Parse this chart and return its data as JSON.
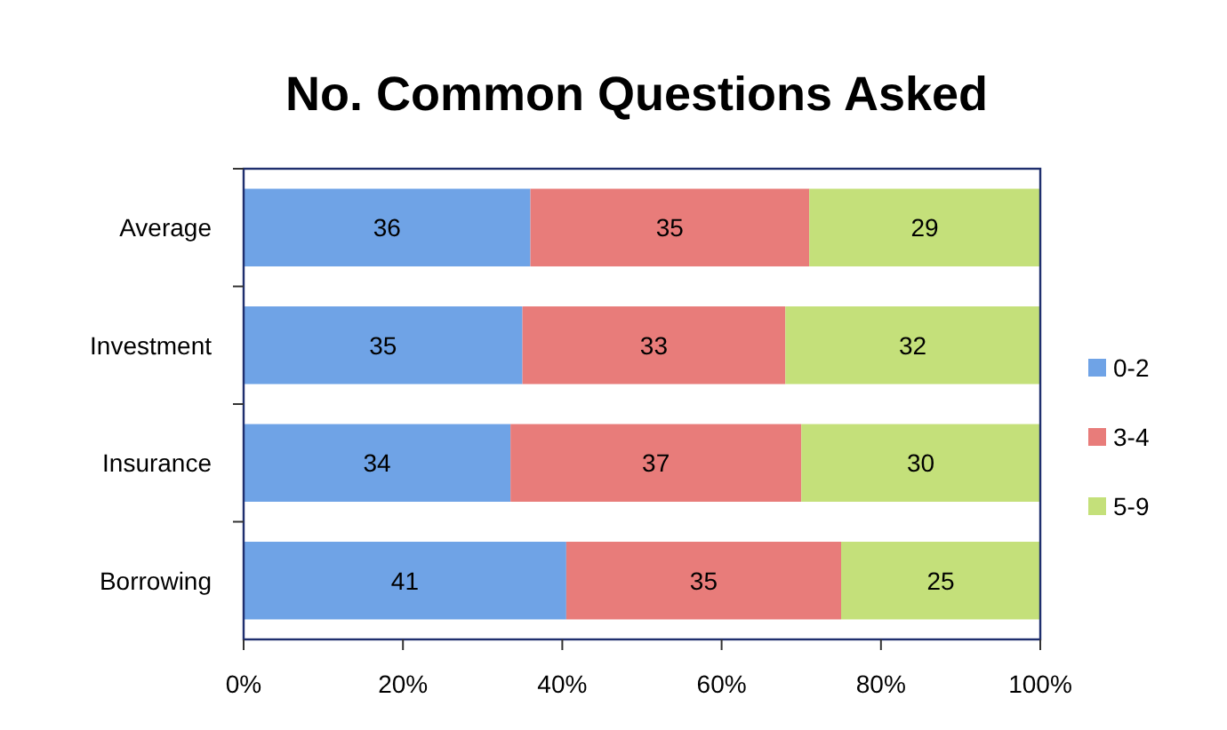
{
  "chart_data": {
    "type": "bar",
    "title": "No. Common Questions Asked",
    "orientation": "horizontal",
    "stacked": true,
    "categories": [
      "Average",
      "Investment",
      "Insurance",
      "Borrowing"
    ],
    "series": [
      {
        "name": "0-2",
        "color": "#6fa3e6",
        "values": [
          36,
          35,
          33.5,
          40.5
        ],
        "value_labels": [
          "36",
          "35",
          "34",
          "41"
        ]
      },
      {
        "name": "3-4",
        "color": "#e87c7a",
        "values": [
          35,
          33,
          36.5,
          34.5
        ],
        "value_labels": [
          "35",
          "33",
          "37",
          "35"
        ]
      },
      {
        "name": "5-9",
        "color": "#c4e07a",
        "values": [
          29,
          32,
          30,
          25
        ],
        "value_labels": [
          "29",
          "32",
          "30",
          "25"
        ]
      }
    ],
    "xlim": [
      0,
      100
    ],
    "xticks": [
      {
        "value": 0,
        "label": "0%"
      },
      {
        "value": 20,
        "label": "20%"
      },
      {
        "value": 40,
        "label": "40%"
      },
      {
        "value": 60,
        "label": "60%"
      },
      {
        "value": 80,
        "label": "80%"
      },
      {
        "value": 100,
        "label": "100%"
      }
    ],
    "grid": false,
    "legend": "right"
  }
}
